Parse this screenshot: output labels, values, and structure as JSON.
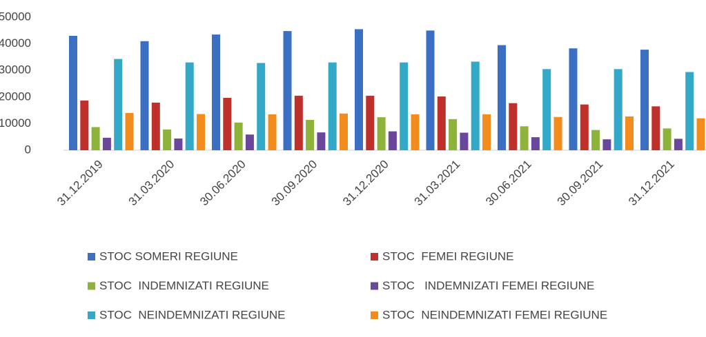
{
  "chart_data": {
    "type": "bar",
    "categories": [
      "31.12.2019",
      "31.03.2020",
      "30.06.2020",
      "30.09.2020",
      "31.12.2020",
      "31.03.2021",
      "30.06.2021",
      "30.09.2021",
      "31.12.2021"
    ],
    "series": [
      {
        "name": "STOC SOMERI REGIUNE",
        "color": "#3b6fc2",
        "values": [
          43000,
          41000,
          43500,
          44800,
          45500,
          45000,
          39500,
          38300,
          37800
        ]
      },
      {
        "name": "STOC  FEMEI REGIUNE",
        "color": "#c0302b",
        "values": [
          18700,
          17900,
          19700,
          20500,
          20500,
          20200,
          17700,
          17200,
          16500
        ]
      },
      {
        "name": "STOC  INDEMNIZATI REGIUNE",
        "color": "#8db33a",
        "values": [
          8700,
          7800,
          10400,
          11400,
          12400,
          11700,
          9000,
          7600,
          8200
        ]
      },
      {
        "name": "STOC   INDEMNIZATI FEMEI REGIUNE",
        "color": "#6b479c",
        "values": [
          4700,
          4400,
          5900,
          6700,
          7100,
          6600,
          4900,
          4100,
          4300
        ]
      },
      {
        "name": "STOC  NEINDEMNIZATI REGIUNE",
        "color": "#33a9c7",
        "values": [
          34300,
          33000,
          32800,
          33000,
          33000,
          33300,
          30500,
          30500,
          29400
        ]
      },
      {
        "name": "STOC  NEINDEMNIZATI FEMEI REGIUNE",
        "color": "#f28c1c",
        "values": [
          14000,
          13600,
          13500,
          13800,
          13500,
          13500,
          12500,
          12700,
          12000
        ]
      }
    ],
    "ylim": [
      0,
      50000
    ],
    "yticks": [
      0,
      10000,
      20000,
      30000,
      40000,
      50000
    ],
    "grid": false
  }
}
